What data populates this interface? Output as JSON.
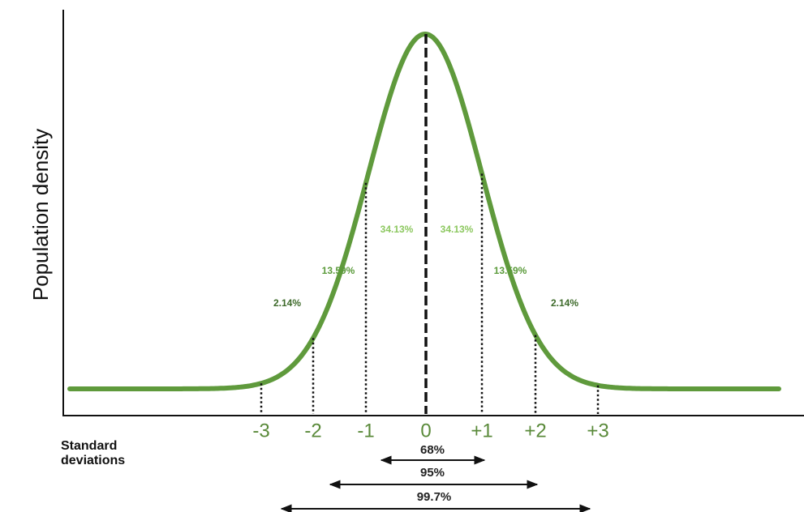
{
  "y_axis_label": "Population density",
  "x_axis_label": [
    "Standard",
    "deviations"
  ],
  "tick_labels": [
    "-3",
    "-2",
    "-1",
    "0",
    "+1",
    "+2",
    "+3"
  ],
  "region_labels": [
    "2.14%",
    "13.59%",
    "34.13%",
    "34.13%",
    "13.59%",
    "2.14%"
  ],
  "range_labels": [
    "68%",
    "95%",
    "99.7%"
  ]
}
